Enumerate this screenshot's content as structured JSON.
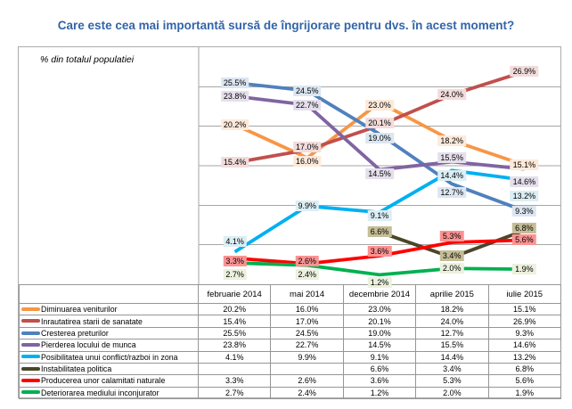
{
  "page": {
    "title": "Care este cea mai importantă sursă de îngrijorare pentru dvs. în acest moment?"
  },
  "colors": {
    "title": "#3264A8",
    "gridline": "#A6A6A6",
    "frame_border": "#ABABAB",
    "table_border": "#969696",
    "background": "#FFFFFF",
    "label_text": "#000000"
  },
  "chart_data": {
    "type": "line",
    "title": "Care este cea mai importantă sursă de îngrijorare pentru dvs. în acest moment?",
    "ylabel": "% din totalul populatiei",
    "xlabel": "",
    "categories": [
      "februarie 2014",
      "mai 2014",
      "decembrie 2014",
      "aprilie 2015",
      "iulie 2015"
    ],
    "ylim": [
      0,
      30
    ],
    "gridline_interval": 5,
    "grid": true,
    "data_labels": true,
    "label_format": "0.0%",
    "legend_position": "table-bottom-left",
    "series": [
      {
        "name": "Diminuarea veniturilor",
        "color": "#F79646",
        "label_bg": "#FDE9D9",
        "values": [
          20.2,
          16.0,
          23.0,
          18.2,
          15.1
        ]
      },
      {
        "name": "Inrautatirea starii de sanatate",
        "color": "#C0504D",
        "label_bg": "#F2DCDB",
        "values": [
          15.4,
          17.0,
          20.1,
          24.0,
          26.9
        ]
      },
      {
        "name": "Cresterea preturilor",
        "color": "#4F81BD",
        "label_bg": "#DCE6F1",
        "values": [
          25.5,
          24.5,
          19.0,
          12.7,
          9.3
        ]
      },
      {
        "name": "Pierderea locului de munca",
        "color": "#8064A2",
        "label_bg": "#E5DFEC",
        "values": [
          23.8,
          22.7,
          14.5,
          15.5,
          14.6
        ]
      },
      {
        "name": "Posibilitatea unui conflict/razboi in zona",
        "color": "#00B0F0",
        "label_bg": "#DBEEF4",
        "values": [
          4.1,
          9.9,
          9.1,
          14.4,
          13.2
        ]
      },
      {
        "name": "Instabilitatea politica",
        "color": "#4A4628",
        "label_bg": "#C4BD97",
        "values": [
          null,
          null,
          6.6,
          3.4,
          6.8
        ]
      },
      {
        "name": "Producerea unor calamitati naturale",
        "color": "#FF0000",
        "label_bg": "#FC9292",
        "values": [
          3.3,
          2.6,
          3.6,
          5.3,
          5.6
        ]
      },
      {
        "name": "Deteriorarea mediului inconjurator",
        "color": "#00B050",
        "label_bg": "#EBF1DD",
        "values": [
          2.7,
          2.4,
          1.2,
          2.0,
          1.9
        ]
      }
    ]
  }
}
